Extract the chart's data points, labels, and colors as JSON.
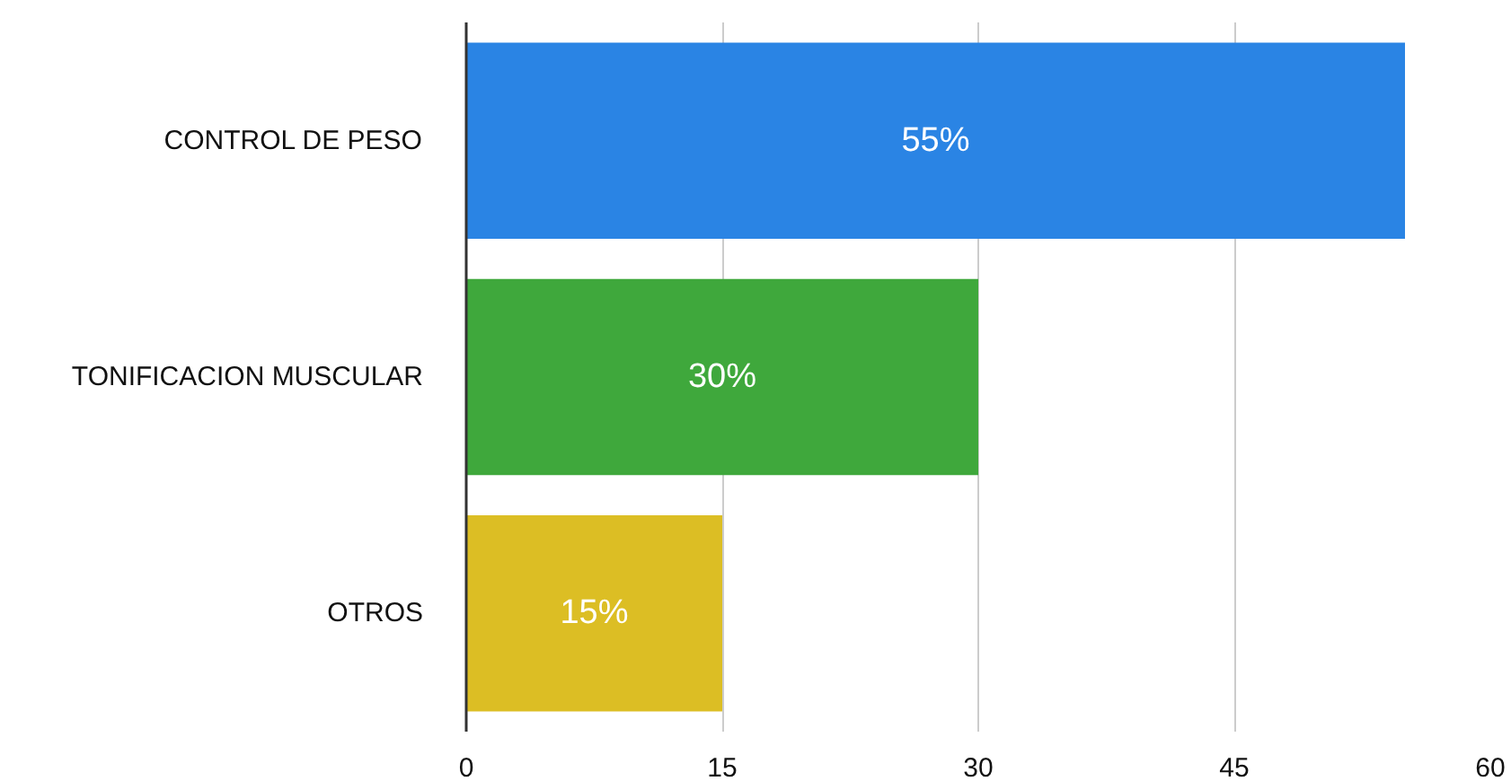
{
  "chart_data": {
    "type": "bar",
    "orientation": "horizontal",
    "categories": [
      "CONTROL DE PESO",
      "TONIFICACION MUSCULAR",
      "OTROS"
    ],
    "values": [
      55,
      30,
      15
    ],
    "colors": [
      "#2a84e4",
      "#3fa83c",
      "#dcbe24"
    ],
    "value_labels": [
      "55%",
      "30%",
      "15%"
    ],
    "xlim": [
      0,
      60
    ],
    "xticks": [
      0,
      15,
      30,
      45,
      60
    ],
    "grid": "x"
  }
}
